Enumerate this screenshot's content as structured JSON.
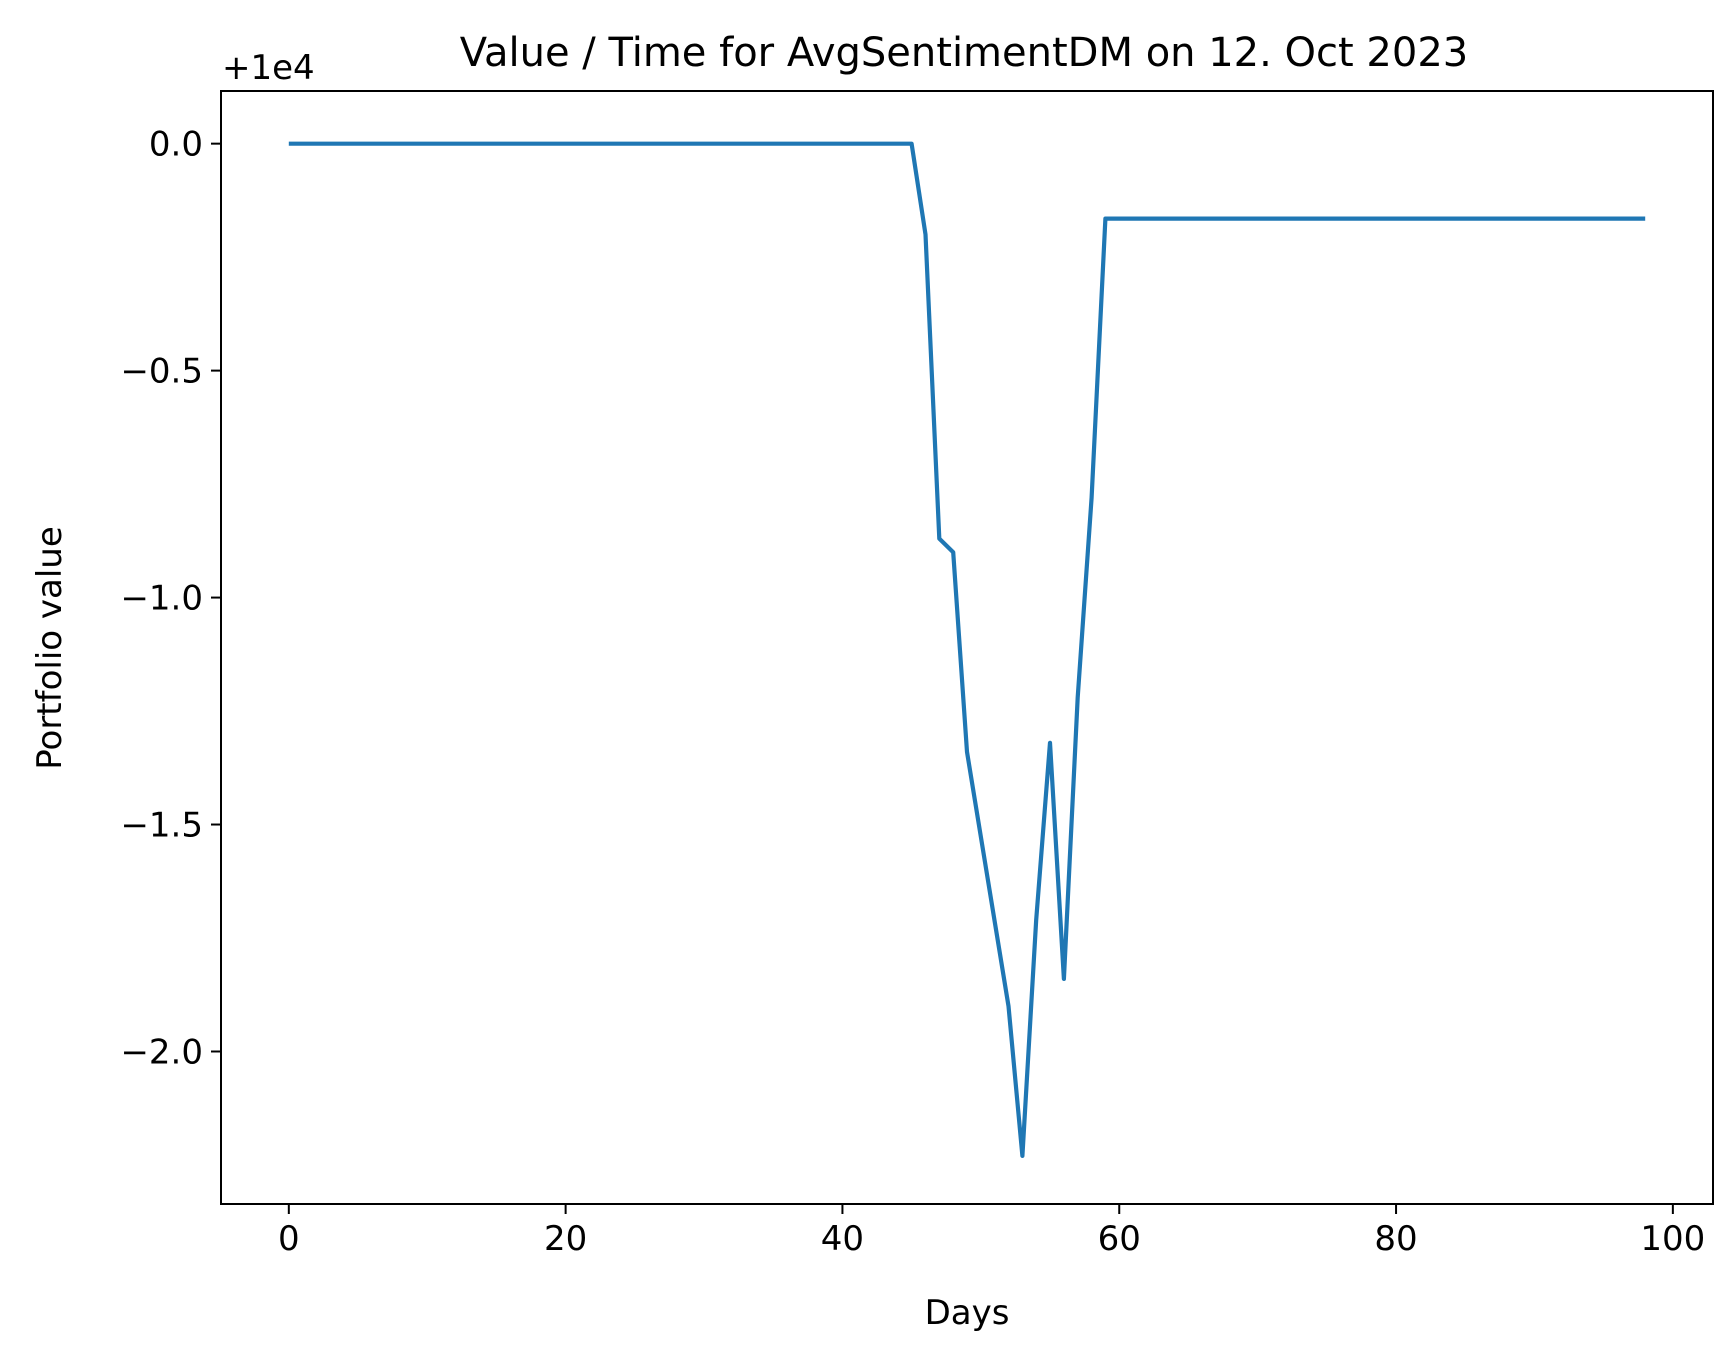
{
  "chart_data": {
    "type": "line",
    "title": "Value / Time for AvgSentimentDM on 12. Oct 2023",
    "xlabel": "Days",
    "ylabel": "Portfolio value",
    "offset_label": "+1e4",
    "xlim": [
      -4.9,
      102.9
    ],
    "ylim": [
      -2.336,
      0.116
    ],
    "x_ticks": [
      0,
      20,
      40,
      60,
      80,
      100
    ],
    "x_tick_labels": [
      "0",
      "20",
      "40",
      "60",
      "80",
      "100"
    ],
    "y_ticks": [
      0.0,
      -0.5,
      -1.0,
      -1.5,
      -2.0
    ],
    "y_tick_labels": [
      "0.0",
      "−0.5",
      "−1.0",
      "−1.5",
      "−2.0"
    ],
    "grid": false,
    "series": [
      {
        "color": "#1f77b4",
        "x": [
          0,
          45,
          46,
          47,
          48,
          49,
          52,
          53,
          54,
          55,
          56,
          57,
          58,
          59,
          98
        ],
        "y": [
          0.0,
          0.0,
          -0.2,
          -0.87,
          -0.9,
          -1.34,
          -1.9,
          -2.23,
          -1.71,
          -1.32,
          -1.84,
          -1.22,
          -0.78,
          -0.165,
          -0.165
        ]
      }
    ]
  }
}
